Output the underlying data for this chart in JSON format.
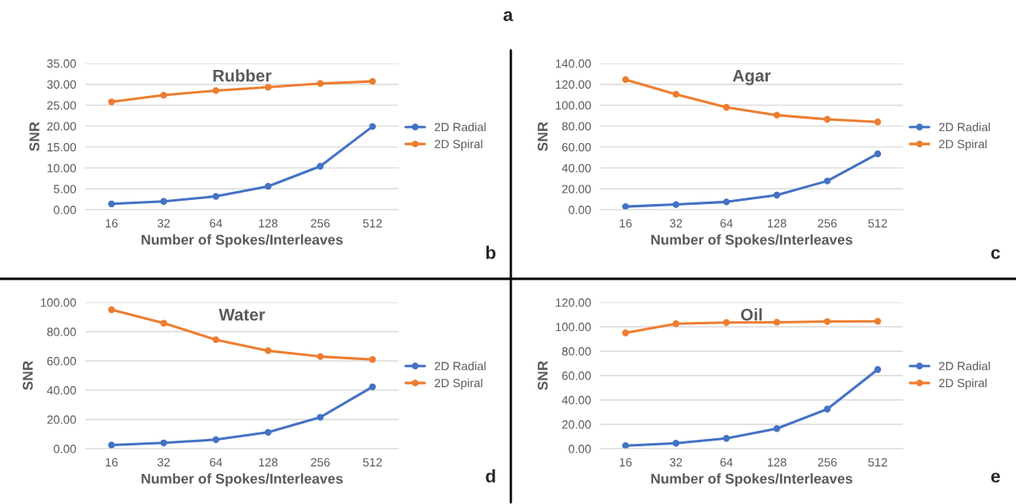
{
  "chart_data": [
    {
      "type": "line",
      "title": "Rubber",
      "xlabel": "Number of Spokes/Interleaves",
      "ylabel": "SNR",
      "categories": [
        "16",
        "32",
        "64",
        "128",
        "256",
        "512"
      ],
      "ylim": [
        0,
        35
      ],
      "yticks": [
        {
          "value": 0,
          "label": "0.00"
        },
        {
          "value": 5,
          "label": "5.00"
        },
        {
          "value": 10,
          "label": "10.00"
        },
        {
          "value": 15,
          "label": "15.00"
        },
        {
          "value": 20,
          "label": "20.00"
        },
        {
          "value": 25,
          "label": "25.00"
        },
        {
          "value": 30,
          "label": "30.00"
        },
        {
          "value": 35,
          "label": "35.00"
        }
      ],
      "grid": "y",
      "legend": "right",
      "marker": "circle",
      "annotations": [
        "a",
        "b"
      ],
      "series": [
        {
          "name": "2D Radial",
          "color": "#4472c4",
          "values": [
            1.4,
            2.0,
            3.2,
            5.6,
            10.4,
            19.9
          ]
        },
        {
          "name": "2D Spiral",
          "color": "#ed7d31",
          "values": [
            25.8,
            27.4,
            28.5,
            29.3,
            30.2,
            30.7
          ]
        }
      ]
    },
    {
      "type": "line",
      "title": "Agar",
      "xlabel": "Number of Spokes/Interleaves",
      "ylabel": "SNR",
      "categories": [
        "16",
        "32",
        "64",
        "128",
        "256",
        "512"
      ],
      "ylim": [
        0,
        140
      ],
      "yticks": [
        {
          "value": 0,
          "label": "0.00"
        },
        {
          "value": 20,
          "label": "20.00"
        },
        {
          "value": 40,
          "label": "40.00"
        },
        {
          "value": 60,
          "label": "60.00"
        },
        {
          "value": 80,
          "label": "80.00"
        },
        {
          "value": 100,
          "label": "100.00"
        },
        {
          "value": 120,
          "label": "120.00"
        },
        {
          "value": 140,
          "label": "140.00"
        }
      ],
      "grid": "y",
      "legend": "right",
      "marker": "circle",
      "annotations": [
        "c"
      ],
      "series": [
        {
          "name": "2D Radial",
          "color": "#4472c4",
          "values": [
            3,
            5,
            7.5,
            14,
            27.5,
            53.5
          ]
        },
        {
          "name": "2D Spiral",
          "color": "#ed7d31",
          "values": [
            124.5,
            110.5,
            98,
            90.5,
            86.5,
            84
          ]
        }
      ]
    },
    {
      "type": "line",
      "title": "Water",
      "xlabel": "Number of Spokes/Interleaves",
      "ylabel": "SNR",
      "categories": [
        "16",
        "32",
        "64",
        "128",
        "256",
        "512"
      ],
      "ylim": [
        0,
        100
      ],
      "yticks": [
        {
          "value": 0,
          "label": "0.00"
        },
        {
          "value": 20,
          "label": "20.00"
        },
        {
          "value": 40,
          "label": "40.00"
        },
        {
          "value": 60,
          "label": "60.00"
        },
        {
          "value": 80,
          "label": "80.00"
        },
        {
          "value": 100,
          "label": "100.00"
        }
      ],
      "grid": "y",
      "legend": "right",
      "marker": "circle",
      "annotations": [
        "d"
      ],
      "series": [
        {
          "name": "2D Radial",
          "color": "#4472c4",
          "values": [
            2.5,
            4,
            6.2,
            11.2,
            21.5,
            42.3
          ]
        },
        {
          "name": "2D Spiral",
          "color": "#ed7d31",
          "values": [
            95,
            85.8,
            74.5,
            67,
            63,
            61
          ]
        }
      ]
    },
    {
      "type": "line",
      "title": "Oil",
      "xlabel": "Number of Spokes/Interleaves",
      "ylabel": "SNR",
      "categories": [
        "16",
        "32",
        "64",
        "128",
        "256",
        "512"
      ],
      "ylim": [
        0,
        120
      ],
      "yticks": [
        {
          "value": 0,
          "label": "0.00"
        },
        {
          "value": 20,
          "label": "20.00"
        },
        {
          "value": 40,
          "label": "40.00"
        },
        {
          "value": 60,
          "label": "60.00"
        },
        {
          "value": 80,
          "label": "80.00"
        },
        {
          "value": 100,
          "label": "100.00"
        },
        {
          "value": 120,
          "label": "120.00"
        }
      ],
      "grid": "y",
      "legend": "right",
      "marker": "circle",
      "annotations": [
        "e"
      ],
      "series": [
        {
          "name": "2D Radial",
          "color": "#4472c4",
          "values": [
            2.5,
            4.5,
            8.5,
            16.5,
            32.5,
            65
          ]
        },
        {
          "name": "2D Spiral",
          "color": "#ed7d31",
          "values": [
            95,
            102.5,
            103.5,
            103.7,
            104.3,
            104.5
          ]
        }
      ]
    }
  ]
}
